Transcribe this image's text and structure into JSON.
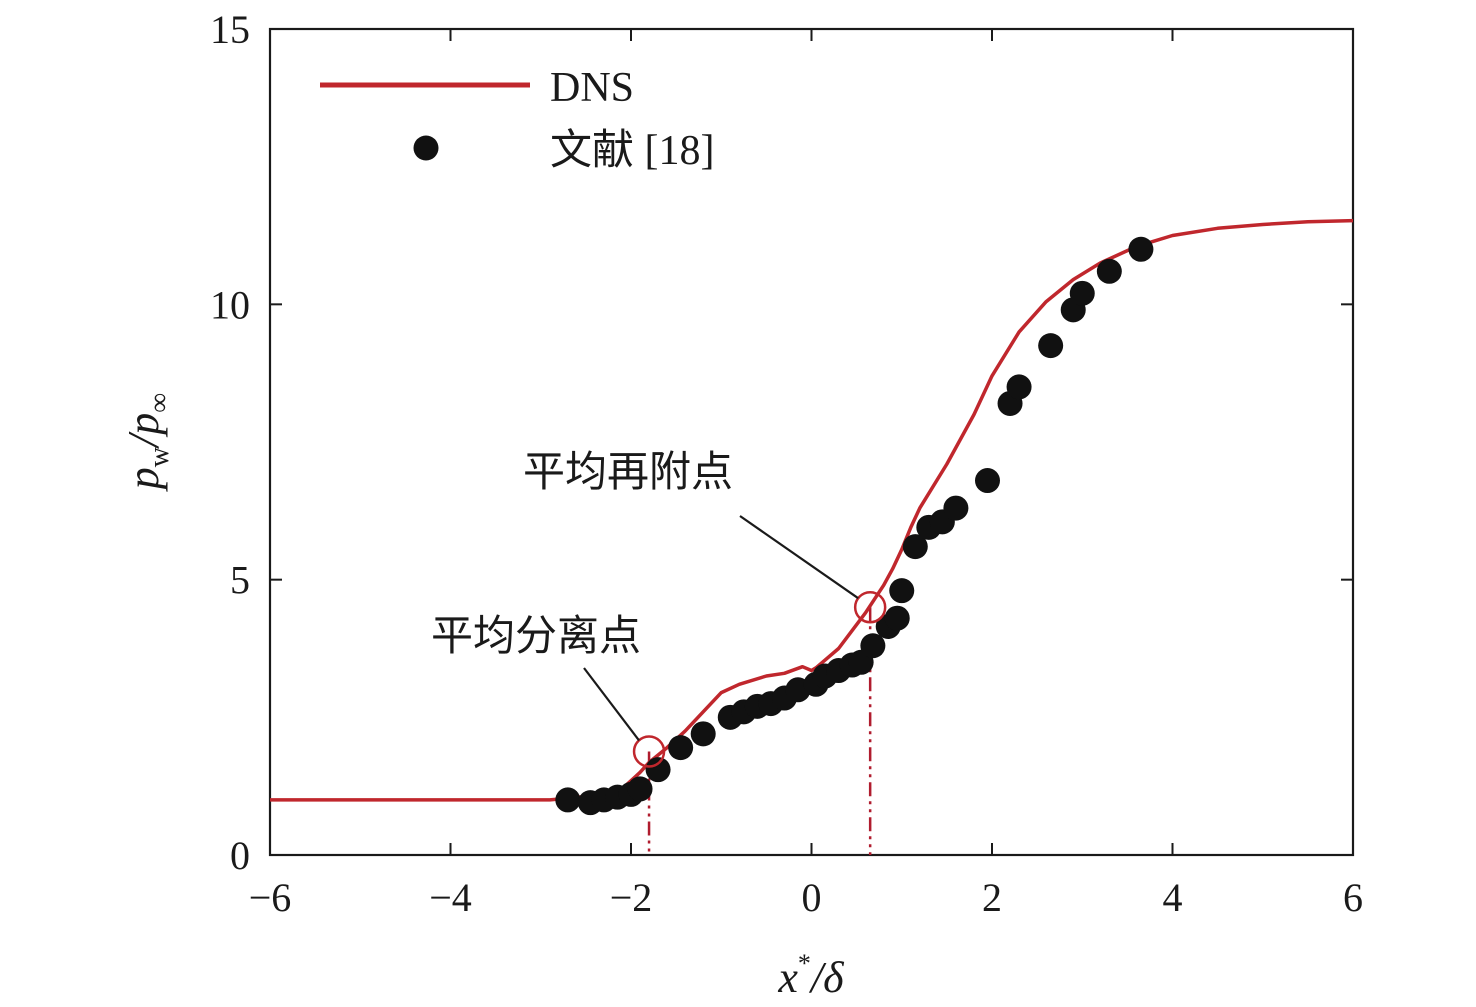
{
  "chart_data": {
    "type": "line",
    "xlabel": {
      "main": "x",
      "sup": "*",
      "rest": "/δ"
    },
    "ylabel": {
      "p1": "p",
      "sub1": "w",
      "slash": "/",
      "p2": "p",
      "sub2": "∞"
    },
    "xlim": [
      -6,
      6
    ],
    "ylim": [
      0,
      15
    ],
    "xticks": [
      -6,
      -4,
      -2,
      0,
      2,
      4,
      6
    ],
    "yticks": [
      0,
      5,
      10,
      15
    ],
    "xtick_labels": [
      "−6",
      "−4",
      "−2",
      "0",
      "2",
      "4",
      "6"
    ],
    "ytick_labels": [
      "0",
      "5",
      "10",
      "15"
    ],
    "grid": false,
    "legend": "top-left",
    "series": [
      {
        "name": "DNS",
        "kind": "line",
        "color": "#c0272d",
        "x": [
          -6,
          -2.9,
          -2.7,
          -2.4,
          -2.1,
          -1.9,
          -1.8,
          -1.6,
          -1.4,
          -1.2,
          -1.0,
          -0.8,
          -0.5,
          -0.3,
          -0.1,
          0,
          0.05,
          0.3,
          0.6,
          0.8,
          0.9,
          1.0,
          1.1,
          1.2,
          1.5,
          1.8,
          2.0,
          2.3,
          2.6,
          2.9,
          3.2,
          3.6,
          4.0,
          4.5,
          5.0,
          5.5,
          6.0
        ],
        "y": [
          1.0,
          1.0,
          1.03,
          1.08,
          1.2,
          1.5,
          1.68,
          1.95,
          2.25,
          2.6,
          2.95,
          3.1,
          3.25,
          3.3,
          3.42,
          3.35,
          3.4,
          3.75,
          4.4,
          4.9,
          5.2,
          5.55,
          5.95,
          6.3,
          7.1,
          8.0,
          8.7,
          9.5,
          10.05,
          10.45,
          10.75,
          11.05,
          11.25,
          11.38,
          11.45,
          11.5,
          11.52
        ]
      },
      {
        "name": "文献 [18]",
        "kind": "scatter",
        "color": "#111111",
        "x": [
          -2.7,
          -2.45,
          -2.3,
          -2.15,
          -2.0,
          -1.9,
          -1.7,
          -1.45,
          -1.2,
          -0.9,
          -0.75,
          -0.6,
          -0.45,
          -0.3,
          -0.15,
          0.05,
          0.15,
          0.3,
          0.45,
          0.55,
          0.68,
          0.85,
          0.95,
          1.0,
          1.15,
          1.3,
          1.45,
          1.6,
          1.95,
          2.2,
          2.3,
          2.65,
          2.9,
          3.0,
          3.3,
          3.65
        ],
        "y": [
          1.0,
          0.95,
          1.0,
          1.05,
          1.1,
          1.2,
          1.55,
          1.95,
          2.2,
          2.5,
          2.6,
          2.7,
          2.75,
          2.85,
          3.0,
          3.1,
          3.25,
          3.35,
          3.45,
          3.5,
          3.8,
          4.15,
          4.3,
          4.8,
          5.6,
          5.95,
          6.05,
          6.3,
          6.8,
          8.2,
          8.5,
          9.25,
          9.9,
          10.2,
          10.6,
          11.0
        ]
      }
    ],
    "annotations": [
      {
        "text": "平均分离点",
        "x": -1.8,
        "y": 1.88
      },
      {
        "text": "平均再附点",
        "x": 0.65,
        "y": 4.5
      }
    ]
  }
}
